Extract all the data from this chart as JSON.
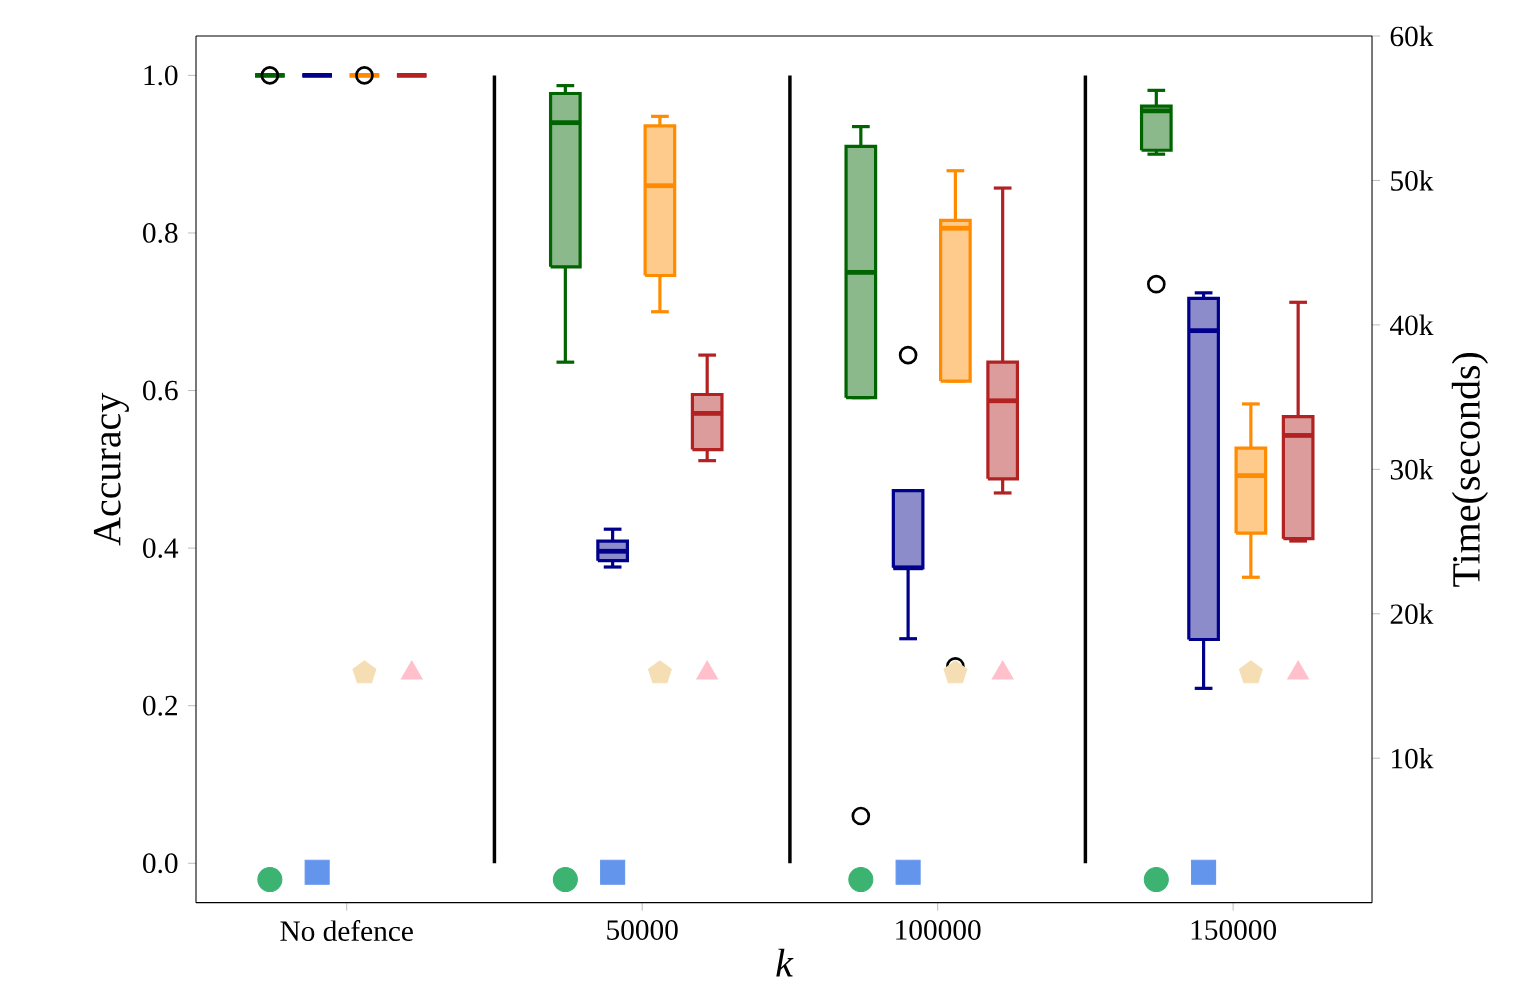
{
  "chart_data": {
    "type": "box",
    "xlabel": "k",
    "ylabel": "Accuracy",
    "y2label": "Time(seconds)",
    "categories": [
      "No defence",
      "50000",
      "100000",
      "150000"
    ],
    "ylim": [
      -0.05,
      1.05
    ],
    "yticks": [
      {
        "value": 0,
        "label": "0.0"
      },
      {
        "value": 0.2,
        "label": "0.2"
      },
      {
        "value": 0.4,
        "label": "0.4"
      },
      {
        "value": 0.6,
        "label": "0.6"
      },
      {
        "value": 0.8,
        "label": "0.8"
      },
      {
        "value": 1,
        "label": "1.0"
      }
    ],
    "y2lim": [
      0,
      60000
    ],
    "y2ticks": [
      {
        "value": 10000,
        "label": "10k"
      },
      {
        "value": 20000,
        "label": "20k"
      },
      {
        "value": 30000,
        "label": "30k"
      },
      {
        "value": 40000,
        "label": "40k"
      },
      {
        "value": 50000,
        "label": "50k"
      },
      {
        "value": 60000,
        "label": "60k"
      }
    ],
    "series": [
      {
        "color": "#006400",
        "boxes": [
          {
            "low": 1,
            "q1": 1,
            "median": 1,
            "q3": 1,
            "high": 1,
            "outliers": [
              1
            ]
          },
          {
            "low": 0.636,
            "q1": 0.757,
            "median": 0.94,
            "q3": 0.977,
            "high": 0.987
          },
          {
            "low": 0.591,
            "q1": 0.591,
            "median": 0.75,
            "q3": 0.91,
            "high": 0.935,
            "outliers": [
              0.06
            ]
          },
          {
            "low": 0.9,
            "q1": 0.905,
            "median": 0.955,
            "q3": 0.961,
            "high": 0.981,
            "outliers": [
              0.735
            ]
          }
        ]
      },
      {
        "color": "#00008b",
        "boxes": [
          {
            "low": 1,
            "q1": 1,
            "median": 1,
            "q3": 1,
            "high": 1
          },
          {
            "low": 0.376,
            "q1": 0.384,
            "median": 0.396,
            "q3": 0.409,
            "high": 0.424
          },
          {
            "low": 0.285,
            "q1": 0.375,
            "median": 0.375,
            "q3": 0.473,
            "high": 0.473,
            "outliers": [
              0.645
            ]
          },
          {
            "low": 0.222,
            "q1": 0.284,
            "median": 0.676,
            "q3": 0.717,
            "high": 0.724
          }
        ]
      },
      {
        "color": "#ff8c00",
        "boxes": [
          {
            "low": 1,
            "q1": 1,
            "median": 1,
            "q3": 1,
            "high": 1,
            "outliers": [
              1
            ]
          },
          {
            "low": 0.7,
            "q1": 0.746,
            "median": 0.86,
            "q3": 0.936,
            "high": 0.948
          },
          {
            "low": 0.612,
            "q1": 0.612,
            "median": 0.806,
            "q3": 0.816,
            "high": 0.879,
            "outliers": [
              0.25
            ]
          },
          {
            "low": 0.363,
            "q1": 0.419,
            "median": 0.492,
            "q3": 0.527,
            "high": 0.583
          }
        ]
      },
      {
        "color": "#b22222",
        "boxes": [
          {
            "low": 1,
            "q1": 1,
            "median": 1,
            "q3": 1,
            "high": 1
          },
          {
            "low": 0.511,
            "q1": 0.525,
            "median": 0.571,
            "q3": 0.595,
            "high": 0.645
          },
          {
            "low": 0.47,
            "q1": 0.488,
            "median": 0.587,
            "q3": 0.636,
            "high": 0.857
          },
          {
            "low": 0.409,
            "q1": 0.412,
            "median": 0.543,
            "q3": 0.567,
            "high": 0.712
          }
        ]
      },
      {
        "type": "scatter",
        "axis": "y2",
        "marker": "circle",
        "color": "#3cb371",
        "x": [
          "No defence",
          "50000",
          "100000",
          "150000"
        ],
        "values": [
          1600,
          1600,
          1600,
          1600
        ]
      },
      {
        "type": "scatter",
        "axis": "y2",
        "marker": "square",
        "color": "#6495ed",
        "x": [
          "No defence",
          "50000",
          "100000",
          "150000"
        ],
        "values": [
          2100,
          2100,
          2100,
          2100
        ]
      },
      {
        "type": "scatter",
        "axis": "y2",
        "color": "#f5deb3",
        "x": [
          "No defence",
          "50000",
          "100000",
          "150000"
        ],
        "values": [
          15900,
          15900,
          15900,
          15900
        ]
      },
      {
        "type": "scatter",
        "axis": "y2",
        "marker": "triangle",
        "color": "#ffc0cb",
        "x": [
          "No defence",
          "50000",
          "100000",
          "150000"
        ],
        "values": [
          15900,
          15900,
          15900,
          15900
        ]
      }
    ]
  }
}
